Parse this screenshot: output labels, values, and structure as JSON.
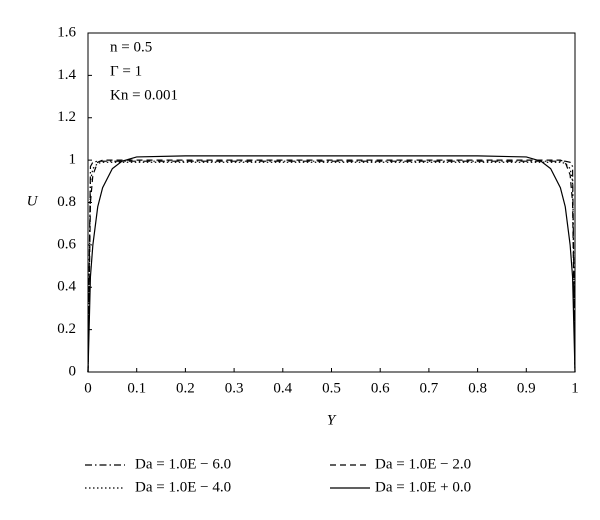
{
  "chart_data": {
    "type": "line",
    "xlabel": "Y",
    "ylabel": "U",
    "annotations": [
      "n = 0.5",
      "Γ = 1",
      "Kn = 0.001"
    ],
    "x": [
      0,
      0.005,
      0.01,
      0.02,
      0.03,
      0.05,
      0.07,
      0.1,
      0.2,
      0.3,
      0.4,
      0.5,
      0.6,
      0.7,
      0.8,
      0.9,
      0.93,
      0.95,
      0.97,
      0.98,
      0.99,
      0.995,
      1
    ],
    "series": [
      {
        "name": "Da = 1.0E − 6.0",
        "color": "#000000",
        "line_style": "dashdot",
        "values": [
          0,
          0.97,
          0.99,
          0.995,
          0.995,
          0.995,
          0.995,
          0.995,
          0.995,
          0.995,
          0.995,
          0.995,
          0.995,
          0.995,
          0.995,
          0.995,
          0.995,
          0.995,
          0.995,
          0.995,
          0.99,
          0.97,
          0
        ]
      },
      {
        "name": "Da = 1.0E − 4.0",
        "color": "#000000",
        "line_style": "dotted",
        "values": [
          0,
          0.9,
          0.96,
          0.985,
          0.99,
          0.99,
          0.99,
          0.99,
          0.99,
          0.99,
          0.99,
          0.99,
          0.99,
          0.99,
          0.99,
          0.99,
          0.99,
          0.99,
          0.99,
          0.985,
          0.96,
          0.9,
          0
        ]
      },
      {
        "name": "Da = 1.0E − 2.0",
        "color": "#000000",
        "line_style": "dashed",
        "values": [
          0,
          0.8,
          0.93,
          0.99,
          1.0,
          1.0,
          1.0,
          1.0,
          1.0,
          1.0,
          1.0,
          1.0,
          1.0,
          1.0,
          1.0,
          1.0,
          1.0,
          1.0,
          1.0,
          0.99,
          0.93,
          0.8,
          0
        ]
      },
      {
        "name": "Da = 1.0E + 0.0",
        "color": "#000000",
        "line_style": "solid",
        "values": [
          0,
          0.45,
          0.6,
          0.78,
          0.87,
          0.96,
          0.995,
          1.015,
          1.02,
          1.02,
          1.02,
          1.02,
          1.02,
          1.02,
          1.02,
          1.015,
          0.995,
          0.96,
          0.87,
          0.78,
          0.6,
          0.45,
          0
        ]
      }
    ],
    "xlim": [
      0,
      1
    ],
    "xticks": [
      0,
      0.1,
      0.2,
      0.3,
      0.4,
      0.5,
      0.6,
      0.7,
      0.8,
      0.9,
      1
    ],
    "ylim": [
      0,
      1.6
    ],
    "yticks": [
      0,
      0.2,
      0.4,
      0.6,
      0.8,
      1,
      1.2,
      1.4,
      1.6
    ],
    "grid": false
  }
}
